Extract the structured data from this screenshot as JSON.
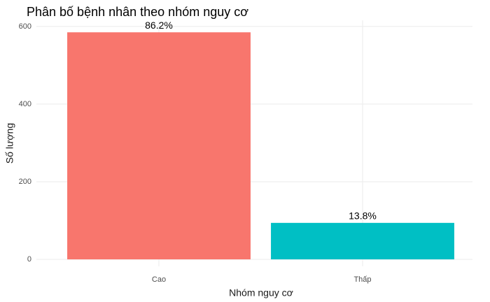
{
  "chart_data": {
    "type": "bar",
    "title": "Phân bố bệnh nhân theo nhóm nguy cơ",
    "x_label": "Nhóm nguy cơ",
    "y_label": "Số lượng",
    "categories": [
      "Cao",
      "Thấp"
    ],
    "values": [
      585,
      94
    ],
    "colors": [
      "#F8766D",
      "#00BFC4"
    ],
    "annotations": [
      "86.2%",
      "13.8%"
    ],
    "ylim": [
      -18,
      616
    ],
    "yticks": [
      0,
      200,
      400,
      600
    ],
    "grid": true
  }
}
